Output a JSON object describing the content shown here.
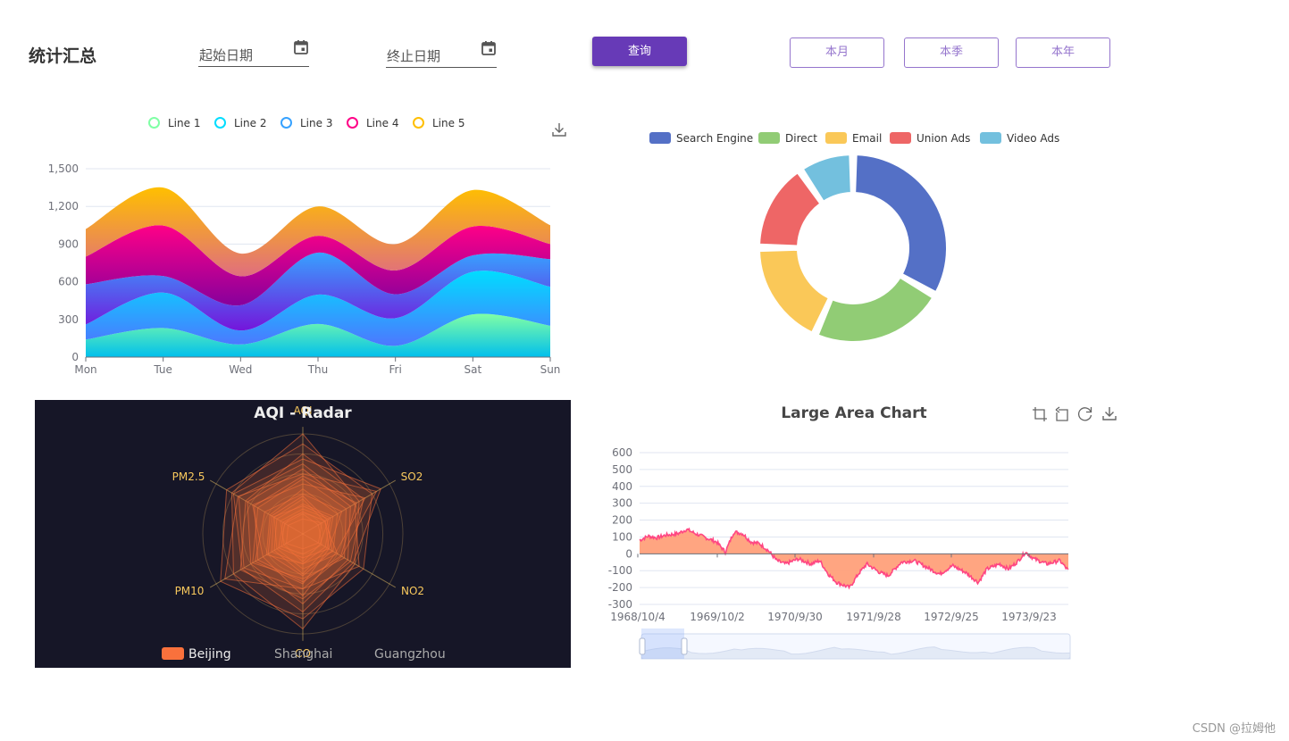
{
  "header": {
    "title": "统计汇总",
    "start_date_label": "起始日期",
    "end_date_label": "终止日期",
    "query_button": "查询",
    "month_button": "本月",
    "quarter_button": "本季",
    "year_button": "本年"
  },
  "footer": {
    "watermark": "CSDN @拉姆他"
  },
  "colors": {
    "accent": "#673ab7",
    "outline": "#9575cd"
  },
  "chart_data": [
    {
      "type": "area",
      "title": "",
      "stacked": true,
      "categories": [
        "Mon",
        "Tue",
        "Wed",
        "Thu",
        "Fri",
        "Sat",
        "Sun"
      ],
      "ylim": [
        0,
        1500
      ],
      "yticks": [
        "0",
        "300",
        "600",
        "900",
        "1,200",
        "1,500"
      ],
      "series": [
        {
          "name": "Line 1",
          "color": "#80FFA5",
          "values": [
            140,
            232,
            101,
            264,
            90,
            340,
            250
          ]
        },
        {
          "name": "Line 2",
          "color": "#00DDFF",
          "values": [
            120,
            282,
            111,
            234,
            220,
            340,
            310
          ]
        },
        {
          "name": "Line 3",
          "color": "#37A2FF",
          "values": [
            320,
            132,
            201,
            334,
            190,
            130,
            220
          ]
        },
        {
          "name": "Line 4",
          "color": "#FF0087",
          "values": [
            220,
            402,
            231,
            134,
            190,
            230,
            120
          ]
        },
        {
          "name": "Line 5",
          "color": "#FFBF00",
          "values": [
            220,
            302,
            181,
            234,
            210,
            290,
            150
          ]
        }
      ],
      "toolbox": [
        "download-icon"
      ]
    },
    {
      "type": "pie",
      "variant": "donut",
      "title": "",
      "legend": [
        "Search Engine",
        "Direct",
        "Email",
        "Union Ads",
        "Video Ads"
      ],
      "colors": [
        "#5470c6",
        "#91cc75",
        "#fac858",
        "#ee6666",
        "#73c0de"
      ],
      "values": [
        1048,
        735,
        580,
        484,
        300
      ]
    },
    {
      "type": "radar",
      "title": "AQI - Radar",
      "indicators": [
        "AQI",
        "SO2",
        "NO2",
        "CO",
        "PM10",
        "PM2.5"
      ],
      "legend": [
        "Beijing",
        "Shanghai",
        "Guangzhou"
      ],
      "active_series": "Beijing",
      "background": "#161627",
      "line_color": "#F9713C",
      "label_color": "#F9C95D",
      "beijing_samples": [
        [
          0.45,
          0.4,
          0.35,
          0.3,
          0.42,
          0.38
        ],
        [
          0.8,
          0.7,
          0.55,
          0.65,
          0.72,
          0.66
        ],
        [
          0.25,
          0.3,
          0.2,
          0.28,
          0.22,
          0.26
        ],
        [
          0.6,
          0.85,
          0.45,
          0.55,
          0.9,
          0.75
        ],
        [
          0.35,
          0.25,
          0.4,
          0.35,
          0.3,
          0.33
        ],
        [
          1.0,
          0.65,
          0.6,
          0.95,
          0.8,
          0.82
        ],
        [
          0.55,
          0.5,
          0.48,
          0.45,
          0.58,
          0.52
        ],
        [
          0.3,
          0.35,
          0.28,
          0.4,
          0.33,
          0.3
        ],
        [
          0.7,
          0.6,
          0.65,
          0.55,
          0.68,
          0.74
        ],
        [
          0.2,
          0.18,
          0.22,
          0.2,
          0.25,
          0.21
        ],
        [
          0.5,
          0.72,
          0.38,
          0.62,
          0.46,
          0.58
        ],
        [
          0.4,
          0.45,
          0.3,
          0.5,
          0.55,
          0.44
        ],
        [
          0.9,
          0.8,
          0.7,
          0.85,
          0.95,
          0.88
        ],
        [
          0.15,
          0.22,
          0.18,
          0.15,
          0.19,
          0.17
        ],
        [
          0.65,
          0.55,
          0.52,
          0.7,
          0.6,
          0.64
        ],
        [
          0.28,
          0.32,
          0.26,
          0.3,
          0.36,
          0.34
        ],
        [
          0.75,
          0.9,
          0.58,
          0.78,
          0.7,
          0.8
        ],
        [
          0.38,
          0.28,
          0.34,
          0.42,
          0.4,
          0.36
        ],
        [
          0.58,
          0.62,
          0.44,
          0.48,
          0.52,
          0.56
        ],
        [
          0.22,
          0.26,
          0.3,
          0.24,
          0.28,
          0.23
        ]
      ]
    },
    {
      "type": "area",
      "title": "Large Area Chart",
      "ylim": [
        -300,
        600
      ],
      "yticks": [
        "600",
        "500",
        "400",
        "300",
        "200",
        "100",
        "0",
        "-100",
        "-200",
        "-300"
      ],
      "xlabels": [
        "1968/10/4",
        "1969/10/2",
        "1970/9/30",
        "1971/9/28",
        "1972/9/25",
        "1973/9/23"
      ],
      "x_start": "1968/10/4",
      "x_end": "1974/2",
      "series_color": "#ff4682",
      "fill_color": "#ffa07a",
      "anchor_values": [
        {
          "t": 0.0,
          "v": 80
        },
        {
          "t": 0.02,
          "v": 105
        },
        {
          "t": 0.04,
          "v": 95
        },
        {
          "t": 0.06,
          "v": 110
        },
        {
          "t": 0.09,
          "v": 120
        },
        {
          "t": 0.11,
          "v": 145
        },
        {
          "t": 0.13,
          "v": 120
        },
        {
          "t": 0.16,
          "v": 90
        },
        {
          "t": 0.18,
          "v": 70
        },
        {
          "t": 0.2,
          "v": 10
        },
        {
          "t": 0.22,
          "v": 130
        },
        {
          "t": 0.24,
          "v": 120
        },
        {
          "t": 0.26,
          "v": 70
        },
        {
          "t": 0.28,
          "v": 60
        },
        {
          "t": 0.3,
          "v": 20
        },
        {
          "t": 0.32,
          "v": -40
        },
        {
          "t": 0.34,
          "v": -60
        },
        {
          "t": 0.37,
          "v": -30
        },
        {
          "t": 0.4,
          "v": -60
        },
        {
          "t": 0.42,
          "v": -40
        },
        {
          "t": 0.44,
          "v": -120
        },
        {
          "t": 0.46,
          "v": -170
        },
        {
          "t": 0.49,
          "v": -200
        },
        {
          "t": 0.51,
          "v": -120
        },
        {
          "t": 0.53,
          "v": -60
        },
        {
          "t": 0.56,
          "v": -110
        },
        {
          "t": 0.58,
          "v": -130
        },
        {
          "t": 0.61,
          "v": -50
        },
        {
          "t": 0.64,
          "v": -40
        },
        {
          "t": 0.67,
          "v": -80
        },
        {
          "t": 0.7,
          "v": -120
        },
        {
          "t": 0.73,
          "v": -70
        },
        {
          "t": 0.76,
          "v": -110
        },
        {
          "t": 0.79,
          "v": -170
        },
        {
          "t": 0.81,
          "v": -90
        },
        {
          "t": 0.84,
          "v": -60
        },
        {
          "t": 0.86,
          "v": -90
        },
        {
          "t": 0.88,
          "v": -50
        },
        {
          "t": 0.9,
          "v": 10
        },
        {
          "t": 0.92,
          "v": -30
        },
        {
          "t": 0.95,
          "v": -60
        },
        {
          "t": 0.98,
          "v": -40
        },
        {
          "t": 1.0,
          "v": -100
        }
      ],
      "datazoom": {
        "start_percent": 0,
        "end_percent": 10
      },
      "toolbox": [
        "zoom-icon",
        "zoom-reset-icon",
        "restore-icon",
        "download-icon"
      ]
    }
  ]
}
